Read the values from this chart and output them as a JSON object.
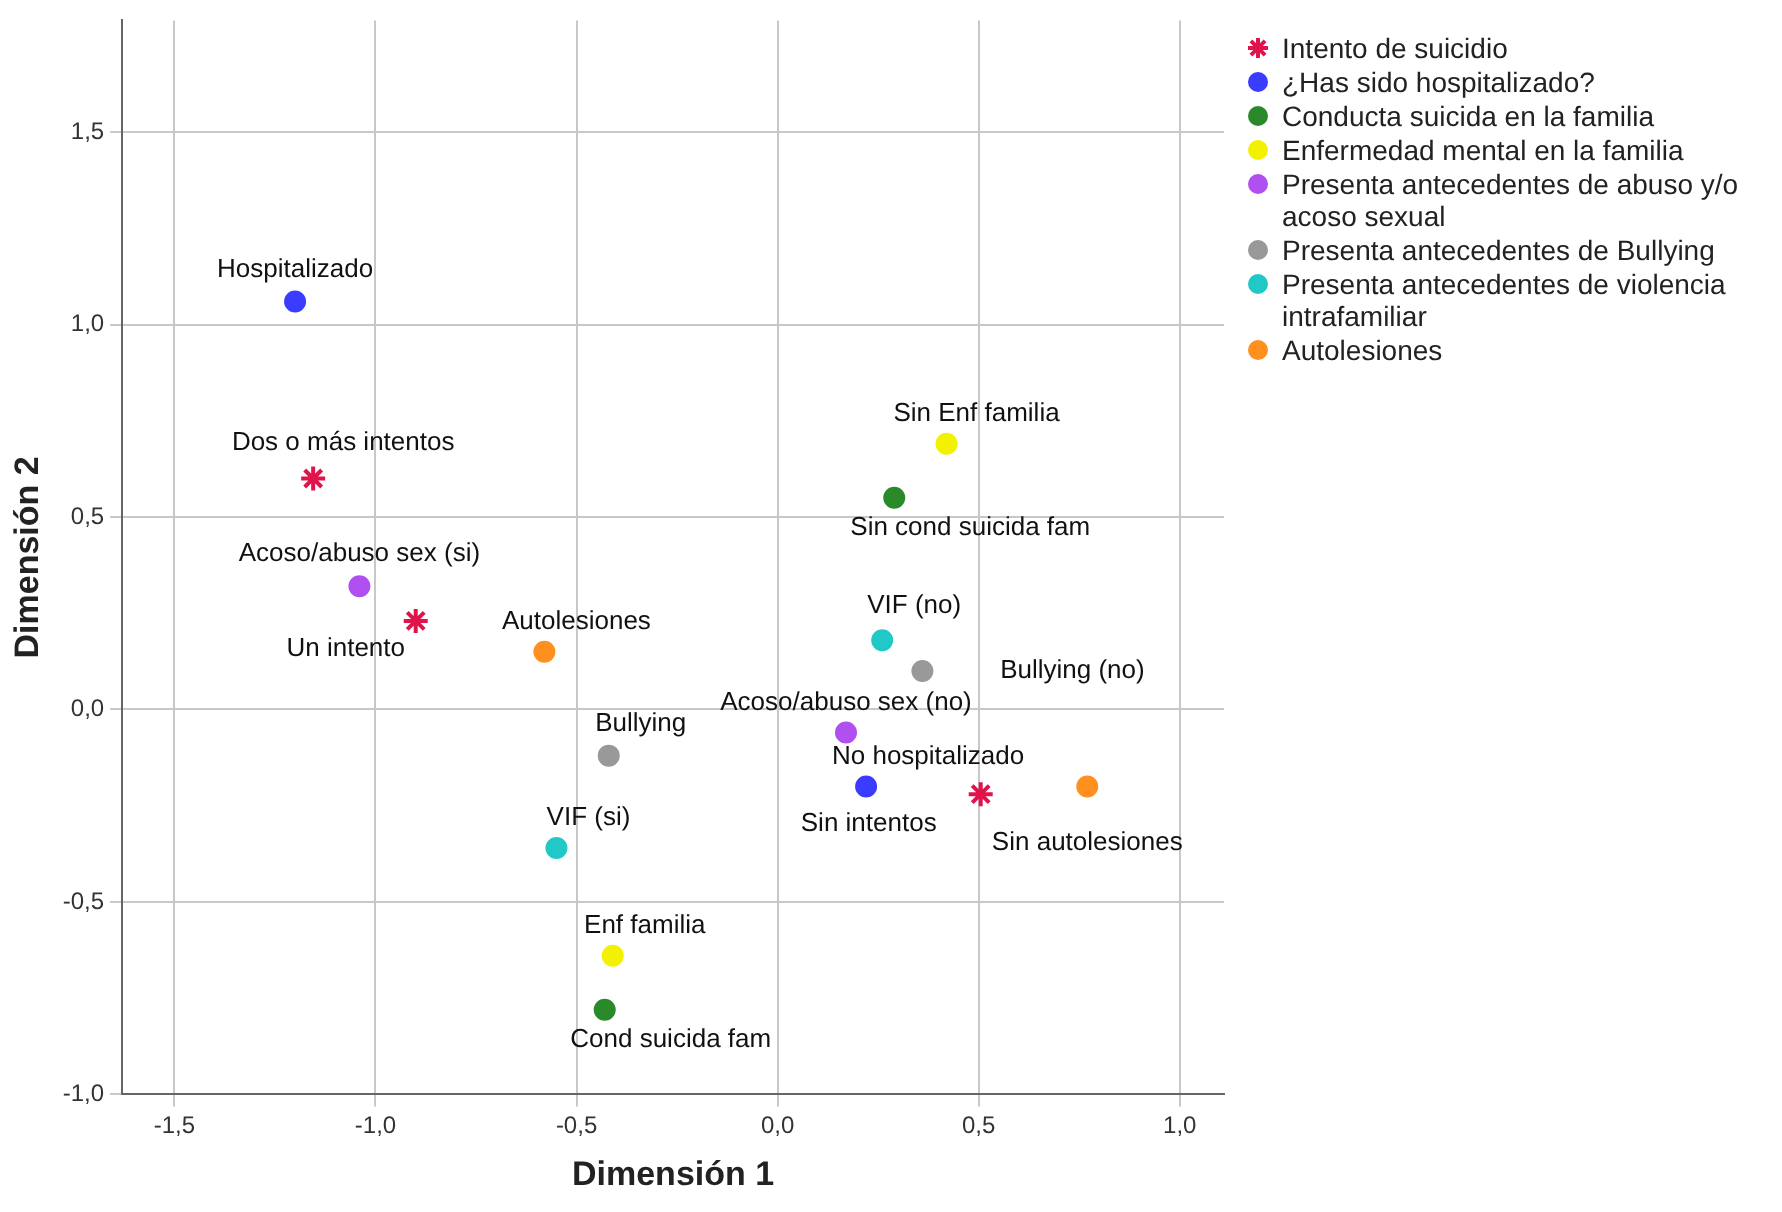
{
  "chart_data": {
    "type": "scatter",
    "xlabel": "Dimensión 1",
    "ylabel": "Dimensión 2",
    "xlim": [
      -1.63,
      1.11
    ],
    "ylim": [
      -1.0,
      1.79
    ],
    "xticks": [
      {
        "value": -1.5,
        "label": "-1,5"
      },
      {
        "value": -1.0,
        "label": "-1,0"
      },
      {
        "value": -0.5,
        "label": "-0,5"
      },
      {
        "value": 0,
        "label": "0,0"
      },
      {
        "value": 0.5,
        "label": "0,5"
      },
      {
        "value": 1.0,
        "label": "1,0"
      }
    ],
    "yticks": [
      {
        "value": -1.0,
        "label": "-1,0"
      },
      {
        "value": -0.5,
        "label": "-0,5"
      },
      {
        "value": 0,
        "label": "0,0"
      },
      {
        "value": 0.5,
        "label": "0,5"
      },
      {
        "value": 1.0,
        "label": "1,0"
      },
      {
        "value": 1.5,
        "label": "1,5"
      }
    ],
    "grid": true,
    "legend": "right",
    "series": [
      {
        "name": "Intento de suicidio",
        "color": "#e0144a",
        "marker": "cross",
        "x": [
          -1.155,
          -0.9,
          0.505
        ],
        "values": [
          0.6,
          0.23,
          -0.22
        ]
      },
      {
        "name": "¿Has sido hospitalizado?",
        "color": "#3a3cff",
        "marker": "circle",
        "x": [
          -1.2,
          0.22
        ],
        "values": [
          1.06,
          -0.2
        ]
      },
      {
        "name": "Conducta suicida en la familia",
        "color": "#2a8a2a",
        "marker": "circle",
        "x": [
          0.29,
          -0.43
        ],
        "values": [
          0.55,
          -0.78
        ]
      },
      {
        "name": "Enfermedad mental en la familia",
        "color": "#f2f200",
        "marker": "circle",
        "x": [
          0.42,
          -0.41
        ],
        "values": [
          0.69,
          -0.64
        ]
      },
      {
        "name": "Presenta antecedentes de abuso y/o acoso sexual",
        "color": "#b050f0",
        "marker": "circle",
        "x": [
          -1.04,
          0.17
        ],
        "values": [
          0.32,
          -0.06
        ]
      },
      {
        "name": "Presenta antecedentes de Bullying",
        "color": "#999999",
        "marker": "circle",
        "x": [
          -0.42,
          0.36
        ],
        "values": [
          -0.12,
          0.1
        ]
      },
      {
        "name": "Presenta antecedentes de violencia intrafamiliar",
        "color": "#20c8c8",
        "marker": "circle",
        "x": [
          0.26,
          -0.55
        ],
        "values": [
          0.18,
          -0.36
        ]
      },
      {
        "name": "Autolesiones",
        "color": "#ff9020",
        "marker": "circle",
        "x": [
          -0.58,
          0.77
        ],
        "values": [
          0.15,
          -0.2
        ]
      }
    ],
    "annotations": [
      {
        "text": "Dos o más intentos",
        "x": -1.155,
        "y": 0.6
      },
      {
        "text": "Un intento",
        "x": -0.9,
        "y": 0.23
      },
      {
        "text": "Sin intentos",
        "x": 0.505,
        "y": -0.22
      },
      {
        "text": "Hospitalizado",
        "x": -1.2,
        "y": 1.06
      },
      {
        "text": "No hospitalizado",
        "x": 0.22,
        "y": -0.2
      },
      {
        "text": "Sin cond suicida fam",
        "x": 0.29,
        "y": 0.55
      },
      {
        "text": "Cond suicida fam",
        "x": -0.43,
        "y": -0.78
      },
      {
        "text": "Sin Enf familia",
        "x": 0.42,
        "y": 0.69
      },
      {
        "text": "Enf familia",
        "x": -0.41,
        "y": -0.64
      },
      {
        "text": "Acoso/abuso sex (si)",
        "x": -1.04,
        "y": 0.32
      },
      {
        "text": "Acoso/abuso sex (no)",
        "x": 0.17,
        "y": -0.06
      },
      {
        "text": "Bullying",
        "x": -0.42,
        "y": -0.12
      },
      {
        "text": "Bullying (no)",
        "x": 0.36,
        "y": 0.1
      },
      {
        "text": "VIF (no)",
        "x": 0.26,
        "y": 0.18
      },
      {
        "text": "VIF (si)",
        "x": -0.55,
        "y": -0.36
      },
      {
        "text": "Autolesiones",
        "x": -0.58,
        "y": 0.15
      },
      {
        "text": "Sin autolesiones",
        "x": 0.77,
        "y": -0.2
      }
    ]
  }
}
